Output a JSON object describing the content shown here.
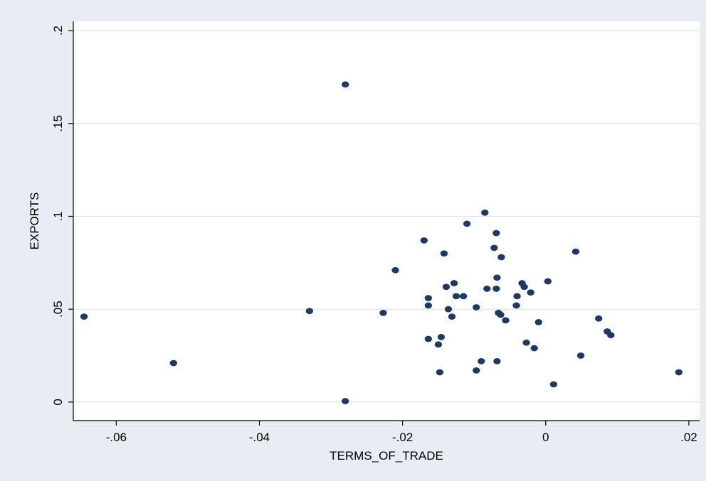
{
  "chart_data": {
    "type": "scatter",
    "title": "",
    "xlabel": "TERMS_OF_TRADE",
    "ylabel": "EXPORTS",
    "xlim": [
      -0.066,
      0.0215
    ],
    "ylim": [
      -0.01,
      0.205
    ],
    "grid": "horizontal",
    "x_ticks": [
      -0.06,
      -0.04,
      -0.02,
      0,
      0.02
    ],
    "x_tick_labels": [
      "-.06",
      "-.04",
      "-.02",
      "0",
      ".02"
    ],
    "y_ticks": [
      0,
      0.05,
      0.1,
      0.15,
      0.2
    ],
    "y_tick_labels": [
      "0",
      ".05",
      ".1",
      ".15",
      ".2"
    ],
    "colors": {
      "outer_bg": "#e8ecf3",
      "plot_bg": "#ffffff",
      "marker": "#1e3a64",
      "grid": "#dfe4ec",
      "axis": "#000000"
    },
    "series": [
      {
        "points": [
          [
            -0.0645,
            0.046
          ],
          [
            -0.052,
            0.021
          ],
          [
            -0.033,
            0.049
          ],
          [
            -0.028,
            0.171
          ],
          [
            -0.028,
            0.0005
          ],
          [
            -0.0227,
            0.048
          ],
          [
            -0.021,
            0.071
          ],
          [
            -0.017,
            0.087
          ],
          [
            -0.0164,
            0.056
          ],
          [
            -0.0164,
            0.052
          ],
          [
            -0.0164,
            0.034
          ],
          [
            -0.015,
            0.031
          ],
          [
            -0.0148,
            0.016
          ],
          [
            -0.0146,
            0.035
          ],
          [
            -0.0142,
            0.08
          ],
          [
            -0.0139,
            0.062
          ],
          [
            -0.0136,
            0.05
          ],
          [
            -0.0131,
            0.046
          ],
          [
            -0.0128,
            0.064
          ],
          [
            -0.0125,
            0.057
          ],
          [
            -0.0115,
            0.057
          ],
          [
            -0.011,
            0.096
          ],
          [
            -0.0097,
            0.051
          ],
          [
            -0.0097,
            0.017
          ],
          [
            -0.009,
            0.022
          ],
          [
            -0.0085,
            0.102
          ],
          [
            -0.0082,
            0.061
          ],
          [
            -0.0072,
            0.083
          ],
          [
            -0.0069,
            0.091
          ],
          [
            -0.0069,
            0.061
          ],
          [
            -0.0068,
            0.067
          ],
          [
            -0.0068,
            0.022
          ],
          [
            -0.0066,
            0.048
          ],
          [
            -0.0063,
            0.047
          ],
          [
            -0.0062,
            0.078
          ],
          [
            -0.0056,
            0.044
          ],
          [
            -0.004,
            0.057
          ],
          [
            -0.0041,
            0.052
          ],
          [
            -0.0033,
            0.064
          ],
          [
            -0.003,
            0.062
          ],
          [
            -0.0027,
            0.032
          ],
          [
            -0.0021,
            0.059
          ],
          [
            -0.0016,
            0.029
          ],
          [
            -0.001,
            0.043
          ],
          [
            0.0003,
            0.065
          ],
          [
            0.0011,
            0.0095
          ],
          [
            0.0042,
            0.081
          ],
          [
            0.0049,
            0.025
          ],
          [
            0.0074,
            0.045
          ],
          [
            0.0086,
            0.038
          ],
          [
            0.0091,
            0.036
          ],
          [
            0.0186,
            0.016
          ]
        ]
      }
    ]
  }
}
